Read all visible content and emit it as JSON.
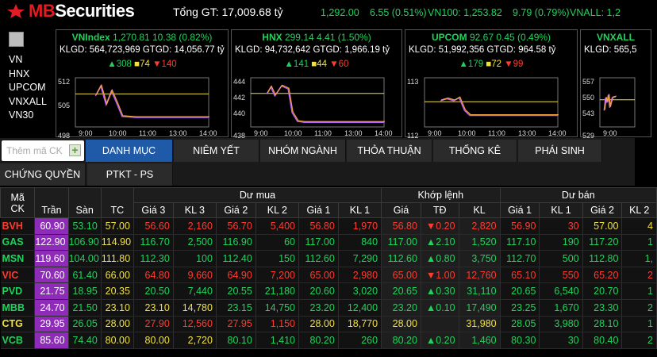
{
  "brand": {
    "name_main": "MB",
    "name_rest": "Securities"
  },
  "total_gt": "Tổng GT: 17,009.68 tỷ",
  "ticker": [
    {
      "text": "1,292.00",
      "left": 404
    },
    {
      "text": "6.55 (0.51%)",
      "left": 466
    },
    {
      "text": "VN100: 1,253.82",
      "left": 539
    },
    {
      "text": "9.79 (0.79%)",
      "left": 646
    },
    {
      "text": "VNALL: 1,2",
      "left": 718
    }
  ],
  "leftnav": [
    "VN",
    "HNX",
    "UPCOM",
    "VNXALL",
    "VN30"
  ],
  "panels": [
    {
      "name": "VNIndex",
      "value": "1,270.81",
      "change": "10.38 (0.82%)",
      "klgd_label": "KLGD:",
      "klgd": "564,723,969",
      "gtgd_label": "GTGD:",
      "gtgd": "14,056.77 tỷ",
      "up": "308",
      "same": "74",
      "down": "140",
      "yticks": [
        "512",
        "505",
        "498"
      ],
      "xticks": [
        "9:00",
        "10:00",
        "11:00",
        "13:00",
        "14:00"
      ]
    },
    {
      "name": "HNX",
      "value": "299.14",
      "change": "4.41 (1.50%)",
      "klgd_label": "KLGD:",
      "klgd": "94,732,642",
      "gtgd_label": "GTGD:",
      "gtgd": "1,966.19 tỷ",
      "up": "141",
      "same": "44",
      "down": "60",
      "yticks": [
        "444",
        "442",
        "440",
        "438"
      ],
      "xticks": [
        "9:00",
        "10:00",
        "11:00",
        "13:00",
        "14:00"
      ]
    },
    {
      "name": "UPCOM",
      "value": "92.67",
      "change": "0.45 (0.49%)",
      "klgd_label": "KLGD:",
      "klgd": "51,992,356",
      "gtgd_label": "GTGD:",
      "gtgd": "964.58 tỷ",
      "up": "179",
      "same": "72",
      "down": "99",
      "yticks": [
        "113",
        "112"
      ],
      "xticks": [
        "9:00",
        "10:00",
        "11:00",
        "13:00",
        "14:00"
      ]
    },
    {
      "name": "VNXALL",
      "value": "",
      "change": "",
      "klgd_label": "KLGD:",
      "klgd": "565,5",
      "gtgd_label": "",
      "gtgd": "",
      "up": "",
      "same": "",
      "down": "",
      "yticks": [
        "557",
        "550",
        "543",
        "529"
      ],
      "xticks": [
        "9:00"
      ]
    }
  ],
  "search": {
    "placeholder": "Thêm mã CK"
  },
  "tabs_row1": [
    "DANH MỤC",
    "NIÊM YẾT",
    "NHÓM NGÀNH",
    "THỎA THUẬN",
    "THỐNG KÊ",
    "PHÁI SINH"
  ],
  "tabs_row2": [
    "CHỨNG QUYỀN",
    "PTKT - PS"
  ],
  "table": {
    "group_headers": {
      "buy": "Dư mua",
      "match": "Khớp lệnh",
      "sell": "Dư bán"
    },
    "col_headers": [
      "Mã\nCK",
      "Trần",
      "Sàn",
      "TC",
      "Giá 3",
      "KL 3",
      "Giá 2",
      "KL 2",
      "Giá 1",
      "KL 1",
      "Giá",
      "TĐ",
      "KL",
      "Giá 1",
      "KL 1",
      "Giá 2",
      "KL 2"
    ],
    "rows": [
      {
        "c": [
          "BVH",
          "60.90",
          "53.10",
          "57.00",
          "56.60",
          "2,160",
          "56.70",
          "5,400",
          "56.80",
          "1,970",
          "56.80",
          "▼0.20",
          "2,820",
          "56.90",
          "30",
          "57.00",
          "4"
        ],
        "k": [
          "r",
          "p",
          "g",
          "y",
          "r",
          "r",
          "r",
          "r",
          "r",
          "r",
          "rr",
          "rr",
          "rr",
          "r",
          "r",
          "y",
          "y"
        ]
      },
      {
        "c": [
          "GAS",
          "122.90",
          "106.90",
          "114.90",
          "116.70",
          "2,500",
          "116.90",
          "60",
          "117.00",
          "840",
          "117.00",
          "▲2.10",
          "1,520",
          "117.10",
          "190",
          "117.20",
          "1"
        ],
        "k": [
          "g",
          "p",
          "g",
          "y",
          "g",
          "g",
          "g",
          "g",
          "g",
          "g",
          "gg",
          "gg",
          "gg",
          "g",
          "g",
          "g",
          "g"
        ]
      },
      {
        "c": [
          "MSN",
          "119.60",
          "104.00",
          "111.80",
          "112.30",
          "100",
          "112.40",
          "150",
          "112.60",
          "7,290",
          "112.60",
          "▲0.80",
          "3,750",
          "112.70",
          "500",
          "112.80",
          "1,"
        ],
        "k": [
          "g",
          "p",
          "g",
          "y",
          "g",
          "g",
          "g",
          "g",
          "g",
          "g",
          "gg",
          "gg",
          "gg",
          "g",
          "g",
          "g",
          "g"
        ]
      },
      {
        "c": [
          "VIC",
          "70.60",
          "61.40",
          "66.00",
          "64.80",
          "9,660",
          "64.90",
          "7,200",
          "65.00",
          "2,980",
          "65.00",
          "▼1.00",
          "12,760",
          "65.10",
          "550",
          "65.20",
          "2"
        ],
        "k": [
          "r",
          "p",
          "g",
          "y",
          "r",
          "r",
          "r",
          "r",
          "r",
          "r",
          "rr",
          "rr",
          "rr",
          "r",
          "r",
          "r",
          "r"
        ]
      },
      {
        "c": [
          "PVD",
          "21.75",
          "18.95",
          "20.35",
          "20.50",
          "7,440",
          "20.55",
          "21,180",
          "20.60",
          "3,020",
          "20.65",
          "▲0.30",
          "31,110",
          "20.65",
          "6,540",
          "20.70",
          "1"
        ],
        "k": [
          "g",
          "p",
          "g",
          "y",
          "g",
          "g",
          "g",
          "g",
          "g",
          "g",
          "gg",
          "gg",
          "gg",
          "g",
          "g",
          "g",
          "g"
        ]
      },
      {
        "c": [
          "MBB",
          "24.70",
          "21.50",
          "23.10",
          "23.10",
          "14,780",
          "23.15",
          "14,750",
          "23.20",
          "12,400",
          "23.20",
          "▲0.10",
          "17,490",
          "23.25",
          "1,670",
          "23.30",
          "2"
        ],
        "k": [
          "g",
          "p",
          "g",
          "y",
          "y",
          "y",
          "g",
          "g",
          "g",
          "g",
          "gg",
          "gg",
          "gg",
          "g",
          "g",
          "g",
          "g"
        ]
      },
      {
        "c": [
          "CTG",
          "29.95",
          "26.05",
          "28.00",
          "27.90",
          "12,560",
          "27.95",
          "1,150",
          "28.00",
          "18,770",
          "28.00",
          "",
          "31,980",
          "28.05",
          "3,980",
          "28.10",
          "1"
        ],
        "k": [
          "y",
          "p",
          "g",
          "y",
          "r",
          "r",
          "r",
          "r",
          "y",
          "y",
          "yy",
          "yy",
          "yy",
          "g",
          "g",
          "g",
          "g"
        ]
      },
      {
        "c": [
          "VCB",
          "85.60",
          "74.40",
          "80.00",
          "80.00",
          "2,720",
          "80.10",
          "1,410",
          "80.20",
          "260",
          "80.20",
          "▲0.20",
          "1,460",
          "80.30",
          "30",
          "80.40",
          "2"
        ],
        "k": [
          "g",
          "p",
          "g",
          "y",
          "y",
          "y",
          "g",
          "g",
          "g",
          "g",
          "gg",
          "gg",
          "gg",
          "g",
          "g",
          "g",
          "g"
        ]
      }
    ]
  },
  "colors": {
    "up": "#1fd35a",
    "down": "#ff3b30",
    "ref": "#f0e040",
    "ceiling": "#8e2bb8",
    "active_tab": "#1e5aa8"
  }
}
